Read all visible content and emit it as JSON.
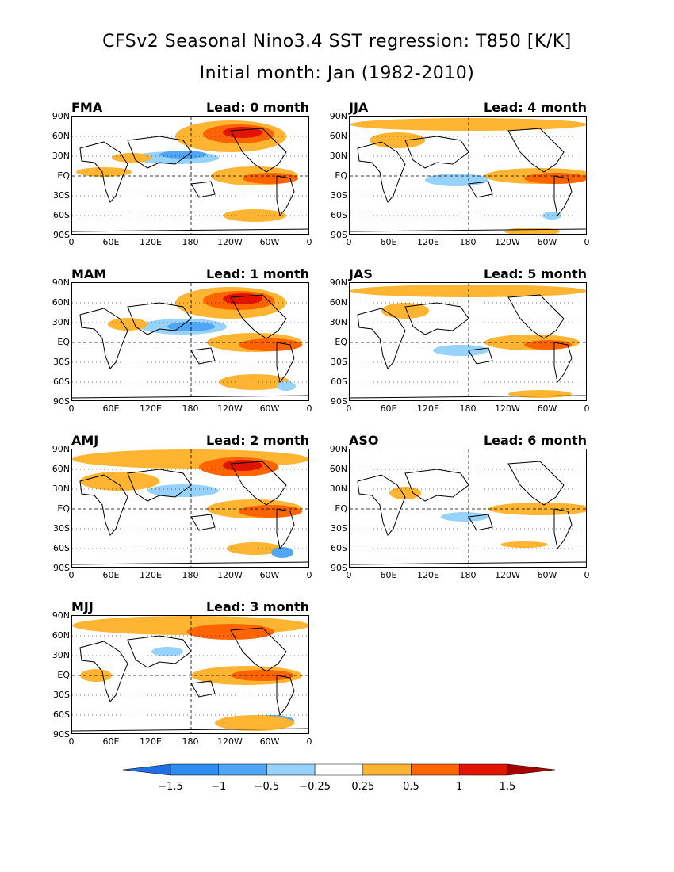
{
  "header": {
    "title_line1": "CFSv2 Seasonal Nino3.4 SST regression: T850 [K/K]",
    "title_line2": "Initial month: Jan (1982-2010)"
  },
  "axes": {
    "y_ticks": [
      "90N",
      "60N",
      "30N",
      "EQ",
      "30S",
      "60S",
      "90S"
    ],
    "x_ticks": [
      "0",
      "60E",
      "120E",
      "180",
      "120W",
      "60W",
      "0"
    ]
  },
  "panels": [
    {
      "season": "FMA",
      "lead": "Lead: 0 month"
    },
    {
      "season": "JJA",
      "lead": "Lead: 4 month"
    },
    {
      "season": "MAM",
      "lead": "Lead: 1 month"
    },
    {
      "season": "JAS",
      "lead": "Lead: 5 month"
    },
    {
      "season": "AMJ",
      "lead": "Lead: 2 month"
    },
    {
      "season": "ASO",
      "lead": "Lead: 6 month"
    },
    {
      "season": "MJJ",
      "lead": "Lead: 3 month"
    }
  ],
  "colorbar": {
    "labels": [
      "-1.5",
      "-1",
      "-0.5",
      "-0.25",
      "0.25",
      "0.5",
      "1",
      "1.5"
    ],
    "colors": [
      "#1e6ee6",
      "#2d8cf0",
      "#50a5f5",
      "#96d2fa",
      "#ffffff",
      "#ffb432",
      "#ff6400",
      "#e11400",
      "#a50000"
    ]
  },
  "chart_data": [
    {
      "type": "heatmap",
      "season": "FMA",
      "lead_months": 0,
      "x_range": [
        "0",
        "0"
      ],
      "y_range": [
        "90S",
        "90N"
      ],
      "features": [
        {
          "region": "North Pacific / NW North America",
          "sign": "positive",
          "max_level": ">1.5"
        },
        {
          "region": "Central-eastern tropical Pacific",
          "sign": "positive",
          "max_level": "0.5-1"
        },
        {
          "region": "Subtropical north-central Pacific",
          "sign": "negative",
          "max_level": "-0.5"
        }
      ]
    },
    {
      "type": "heatmap",
      "season": "JJA",
      "lead_months": 4,
      "features": [
        {
          "region": "Eastern tropical Pacific",
          "sign": "positive",
          "max_level": "0.5-1"
        },
        {
          "region": "Northern high latitudes",
          "sign": "positive",
          "max_level": "0.5"
        },
        {
          "region": "Western tropical Pacific",
          "sign": "negative",
          "max_level": "-0.5"
        }
      ]
    },
    {
      "type": "heatmap",
      "season": "MAM",
      "lead_months": 1,
      "features": [
        {
          "region": "North Pacific / Canada",
          "sign": "positive",
          "max_level": ">1.5"
        },
        {
          "region": "Central-eastern tropical Pacific",
          "sign": "positive",
          "max_level": "0.5-1"
        },
        {
          "region": "Subtropical north Pacific",
          "sign": "negative",
          "max_level": "-0.5"
        }
      ]
    },
    {
      "type": "heatmap",
      "season": "JAS",
      "lead_months": 5,
      "features": [
        {
          "region": "Eastern tropical Pacific",
          "sign": "positive",
          "max_level": "0.5-1"
        },
        {
          "region": "Western tropical Pacific",
          "sign": "negative",
          "max_level": "-0.5"
        }
      ]
    },
    {
      "type": "heatmap",
      "season": "AMJ",
      "lead_months": 2,
      "features": [
        {
          "region": "North Pacific / Arctic",
          "sign": "positive",
          "max_level": "1-1.5"
        },
        {
          "region": "Central-eastern tropical Pacific",
          "sign": "positive",
          "max_level": "0.5-1"
        },
        {
          "region": "Subtropical north Pacific",
          "sign": "negative",
          "max_level": "-0.5"
        }
      ]
    },
    {
      "type": "heatmap",
      "season": "ASO",
      "lead_months": 6,
      "features": [
        {
          "region": "Eastern tropical Pacific",
          "sign": "positive",
          "max_level": "0.5"
        },
        {
          "region": "Western tropical Pacific",
          "sign": "negative",
          "max_level": "-0.25"
        }
      ]
    },
    {
      "type": "heatmap",
      "season": "MJJ",
      "lead_months": 3,
      "features": [
        {
          "region": "North Pacific / NH high latitudes",
          "sign": "positive",
          "max_level": "0.5-1"
        },
        {
          "region": "Central-eastern tropical Pacific",
          "sign": "positive",
          "max_level": "0.5-1"
        },
        {
          "region": "Southern Ocean south of Pacific",
          "sign": "negative",
          "max_level": "-0.5"
        }
      ]
    }
  ]
}
